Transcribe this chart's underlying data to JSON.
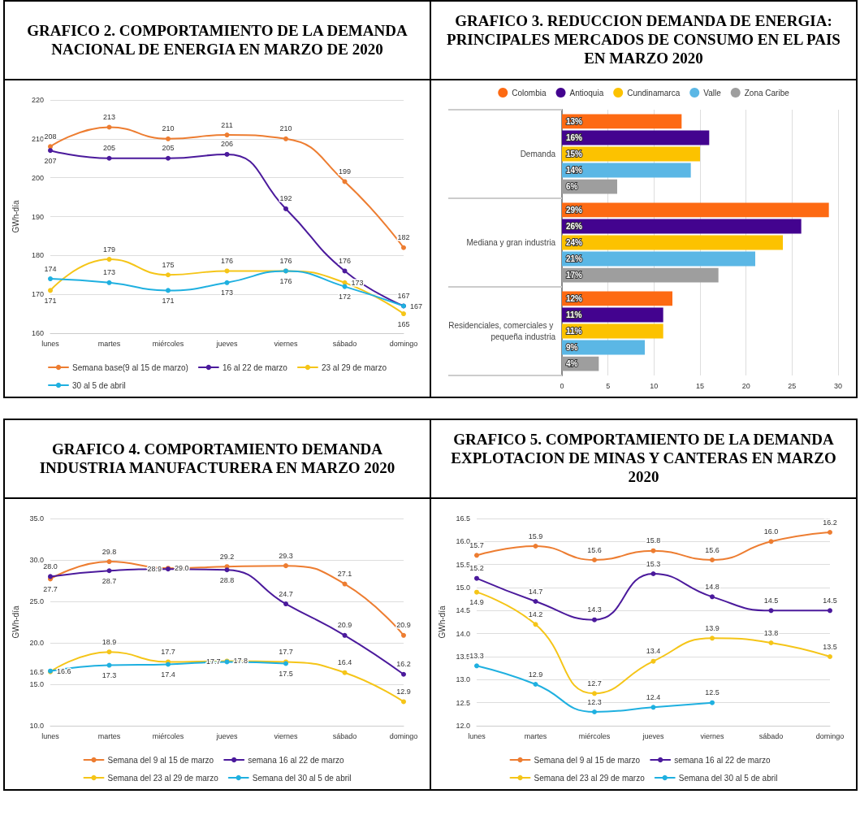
{
  "chart_data": [
    {
      "type": "line",
      "title": "GRAFICO 2. COMPORTAMIENTO DE LA DEMANDA NACIONAL DE ENERGIA EN MARZO DE 2020",
      "ylabel": "GWh-día",
      "categories": [
        "lunes",
        "martes",
        "miércoles",
        "jueves",
        "viernes",
        "sábado",
        "domingo"
      ],
      "ylim": [
        160,
        220
      ],
      "yticks": [
        160,
        170,
        180,
        190,
        200,
        210,
        220
      ],
      "grid": "y",
      "legend": "bottom",
      "marker": "circle",
      "data_labels": true,
      "series": [
        {
          "name": "Semana base(9 al 15 de marzo)",
          "color": "#ed7d31",
          "values": [
            208,
            213,
            210,
            211,
            210,
            199,
            182
          ]
        },
        {
          "name": "16 al 22 de marzo",
          "color": "#4b1a9c",
          "values": [
            207,
            205,
            205,
            206,
            192,
            176,
            167
          ]
        },
        {
          "name": "23 al 29 de marzo",
          "color": "#f5c518",
          "values": [
            171,
            179,
            175,
            176,
            176,
            173,
            165
          ]
        },
        {
          "name": "30 al 5 de abril",
          "color": "#1fb0e0",
          "values": [
            174,
            173,
            171,
            173,
            176,
            172,
            167
          ]
        }
      ]
    },
    {
      "type": "bar",
      "orientation": "horizontal",
      "title": "GRAFICO 3. REDUCCION DEMANDA DE ENERGIA: PRINCIPALES MERCADOS DE CONSUMO EN EL PAIS EN MARZO 2020",
      "categories": [
        "Demanda",
        "Mediana y gran industria",
        "Residenciales, comerciales y pequeña industria"
      ],
      "xlim": [
        0,
        30
      ],
      "xticks": [
        0,
        5,
        10,
        15,
        20,
        25,
        30
      ],
      "grid": "x",
      "legend": "top",
      "series": [
        {
          "name": "Colombia",
          "color": "#fd6a13",
          "values": [
            13,
            29,
            12
          ],
          "value_labels": [
            "13%",
            "29%",
            "12%"
          ]
        },
        {
          "name": "Antioquia",
          "color": "#43038f",
          "values": [
            16,
            26,
            11
          ],
          "value_labels": [
            "16%",
            "26%",
            "11%"
          ]
        },
        {
          "name": "Cundinamarca",
          "color": "#fcc200",
          "values": [
            15,
            24,
            11
          ],
          "value_labels": [
            "15%",
            "24%",
            "11%"
          ]
        },
        {
          "name": "Valle",
          "color": "#5bb7e5",
          "values": [
            14,
            21,
            9
          ],
          "value_labels": [
            "14%",
            "21%",
            "9%"
          ]
        },
        {
          "name": "Zona Caribe",
          "color": "#9e9e9e",
          "values": [
            6,
            17,
            4
          ],
          "value_labels": [
            "6%",
            "17%",
            "4%"
          ]
        }
      ]
    },
    {
      "type": "line",
      "title": "GRAFICO 4. COMPORTAMIENTO DEMANDA INDUSTRIA MANUFACTURERA EN MARZO 2020",
      "ylabel": "GWh-día",
      "categories": [
        "lunes",
        "martes",
        "miércoles",
        "jueves",
        "viernes",
        "sábado",
        "domingo"
      ],
      "ylim": [
        10,
        35
      ],
      "yticks": [
        {
          "value": 10,
          "label": "10.0"
        },
        {
          "value": 15,
          "label": "15.0"
        },
        {
          "value": 20,
          "label": "20.0"
        },
        {
          "value": 25,
          "label": "25.0"
        },
        {
          "value": 30,
          "label": "30.0"
        },
        {
          "value": 35,
          "label": "35.0"
        }
      ],
      "grid": "y",
      "legend": "bottom",
      "marker": "circle",
      "series": [
        {
          "name": "Semana del 9 al 15 de marzo",
          "color": "#ed7d31",
          "values": [
            27.7,
            29.8,
            29.0,
            29.2,
            29.3,
            27.1,
            20.9
          ],
          "value_labels": [
            "27.7",
            "29.8",
            "29.0",
            "29.2",
            "29.3",
            "27.1",
            "20.9"
          ]
        },
        {
          "name": "semana 16 al 22 de marzo",
          "color": "#4b1a9c",
          "values": [
            28.0,
            28.7,
            28.9,
            28.8,
            24.7,
            20.9,
            16.2
          ],
          "value_labels": [
            "28.0",
            "28.7",
            "28.9",
            "28.8",
            "24.7",
            "20.9",
            "16.2"
          ]
        },
        {
          "name": "Semana del 23 al 29 de marzo",
          "color": "#f5c518",
          "values": [
            16.5,
            18.9,
            17.7,
            17.8,
            17.7,
            16.4,
            12.9
          ],
          "value_labels": [
            "16.5",
            "18.9",
            "17.7",
            "17.8",
            "17.7",
            "16.4",
            "12.9"
          ]
        },
        {
          "name": "Semana del 30 al 5 de abril",
          "color": "#1fb0e0",
          "values": [
            16.6,
            17.3,
            17.4,
            17.7,
            17.5,
            null,
            null
          ],
          "value_labels": [
            "16.6",
            "17.3",
            "17.4",
            "17.7",
            "17.5",
            null,
            null
          ]
        }
      ]
    },
    {
      "type": "line",
      "title": "GRAFICO 5. COMPORTAMIENTO DE LA DEMANDA EXPLOTACION DE MINAS Y CANTERAS EN MARZO 2020",
      "ylabel": "GWh-día",
      "categories": [
        "lunes",
        "martes",
        "miércoles",
        "jueves",
        "viernes",
        "sábado",
        "domingo"
      ],
      "ylim": [
        12,
        16.5
      ],
      "yticks": [
        {
          "value": 12,
          "label": "12.0"
        },
        12.5,
        {
          "value": 13,
          "label": "13.0"
        },
        13.5,
        {
          "value": 14,
          "label": "14.0"
        },
        14.5,
        {
          "value": 15,
          "label": "15.0"
        },
        15.5,
        {
          "value": 16,
          "label": "16.0"
        },
        16.5
      ],
      "grid": "y",
      "legend": "bottom",
      "marker": "circle",
      "series": [
        {
          "name": "Semana del 9 al 15 de marzo",
          "color": "#ed7d31",
          "values": [
            15.7,
            15.9,
            15.6,
            15.8,
            15.6,
            16.0,
            16.2
          ],
          "value_labels": [
            "15.7",
            "15.9",
            "15.6",
            "15.8",
            "15.6",
            "16.0",
            "16.2"
          ]
        },
        {
          "name": "semana 16 al 22 de marzo",
          "color": "#4b1a9c",
          "values": [
            15.2,
            14.7,
            14.3,
            15.3,
            14.8,
            14.5,
            14.5
          ],
          "value_labels": [
            "15.2",
            "14.7",
            "14.3",
            "15.3",
            "14.8",
            "14.5",
            "14.5"
          ]
        },
        {
          "name": "Semana del 23 al 29 de marzo",
          "color": "#f5c518",
          "values": [
            14.9,
            14.2,
            12.7,
            13.4,
            13.9,
            13.8,
            13.5
          ],
          "value_labels": [
            "14.9",
            "14.2",
            "12.7",
            "13.4",
            "13.9",
            "13.8",
            "13.5"
          ]
        },
        {
          "name": "Semana del 30 al 5 de abril",
          "color": "#1fb0e0",
          "values": [
            13.3,
            12.9,
            12.3,
            12.4,
            12.5,
            null,
            null
          ],
          "value_labels": [
            "13.3",
            "12.9",
            "12.3",
            "12.4",
            "12.5",
            null,
            null
          ]
        }
      ]
    }
  ]
}
